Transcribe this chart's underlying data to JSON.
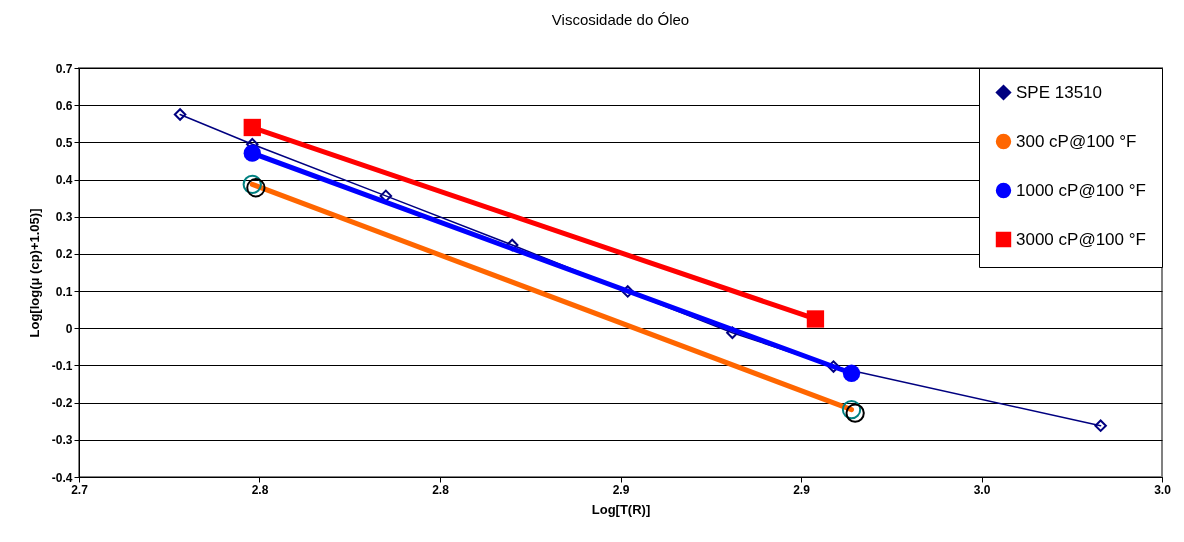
{
  "chart_data": {
    "type": "line",
    "title": "Viscosidade do Óleo",
    "xlabel": "Log[T(R)]",
    "ylabel": "Log[log(μ (cp)+1.05)]",
    "xlim": [
      2.7,
      3.0
    ],
    "xticks": [
      {
        "value": 2.7,
        "label": "2.7"
      },
      {
        "value": 2.75,
        "label": "2.8"
      },
      {
        "value": 2.8,
        "label": "2.8"
      },
      {
        "value": 2.85,
        "label": "2.9"
      },
      {
        "value": 2.9,
        "label": "2.9"
      },
      {
        "value": 2.95,
        "label": "3.0"
      },
      {
        "value": 3.0,
        "label": "3.0"
      }
    ],
    "ylim": [
      -0.4,
      0.7
    ],
    "yticks": [
      -0.4,
      -0.3,
      -0.2,
      -0.1,
      0,
      0.1,
      0.2,
      0.3,
      0.4,
      0.5,
      0.6,
      0.7
    ],
    "grid": "y",
    "legend": "top right",
    "series": [
      {
        "name": "SPE 13510",
        "type": "line",
        "marker": "diamond",
        "color": "#000080",
        "x": [
          2.728,
          2.748,
          2.785,
          2.82,
          2.852,
          2.881,
          2.909,
          2.983
        ],
        "values": [
          0.575,
          0.495,
          0.356,
          0.224,
          0.099,
          -0.012,
          -0.103,
          -0.262
        ]
      },
      {
        "name": "300 cP@100 °F",
        "type": "line",
        "marker": "circle",
        "color": "#ff6600",
        "colors": [
          "#008080",
          "#008080"
        ],
        "x": [
          2.748,
          2.914
        ],
        "values": [
          0.387,
          -0.219
        ]
      },
      {
        "name": "1000 cP@100 °F",
        "type": "line",
        "marker": "circle",
        "color": "#0000ff",
        "x": [
          2.748,
          2.914
        ],
        "values": [
          0.471,
          -0.121
        ]
      },
      {
        "name": "3000 cP@100 °F",
        "type": "line",
        "marker": "square",
        "color": "#ff0000",
        "x": [
          2.748,
          2.904
        ],
        "values": [
          0.54,
          0.025
        ]
      },
      {
        "type": "scatter",
        "marker": "circle",
        "color": "#000000",
        "colors": [
          "#000000",
          "#000000"
        ],
        "x": [
          2.749,
          2.915
        ],
        "values": [
          0.378,
          -0.228
        ]
      }
    ]
  }
}
